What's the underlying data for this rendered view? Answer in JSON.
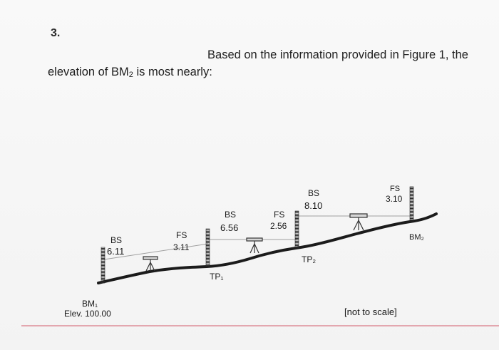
{
  "question_number": "3.",
  "question": {
    "line1": "Based on the information provided in Figure 1, the",
    "line2_before": "elevation of BM",
    "line2_sub": "2",
    "line2_after": " is most nearly:"
  },
  "figure": {
    "bm1_label": "BM₁",
    "bm1_elev": "Elev. 100.00",
    "setup1": {
      "bs_label": "BS",
      "bs_value": "6.11",
      "fs_label": "FS",
      "fs_value": "3.11"
    },
    "tp1_label": "TP₁",
    "setup2": {
      "bs_label": "BS",
      "bs_value": "6.56",
      "fs_label": "FS",
      "fs_value": "2.56"
    },
    "tp2_label": "TP₂",
    "setup3": {
      "bs_label": "BS",
      "bs_value": "8.10",
      "fs_label": "FS",
      "fs_value": "3.10"
    },
    "bm2_label": "BM₂",
    "note": "[not to scale]"
  },
  "colors": {
    "ground": "#1b1b1b",
    "rod": "#2a2a2a",
    "sightline": "#9a9a9a",
    "rule": "#d97a86"
  }
}
